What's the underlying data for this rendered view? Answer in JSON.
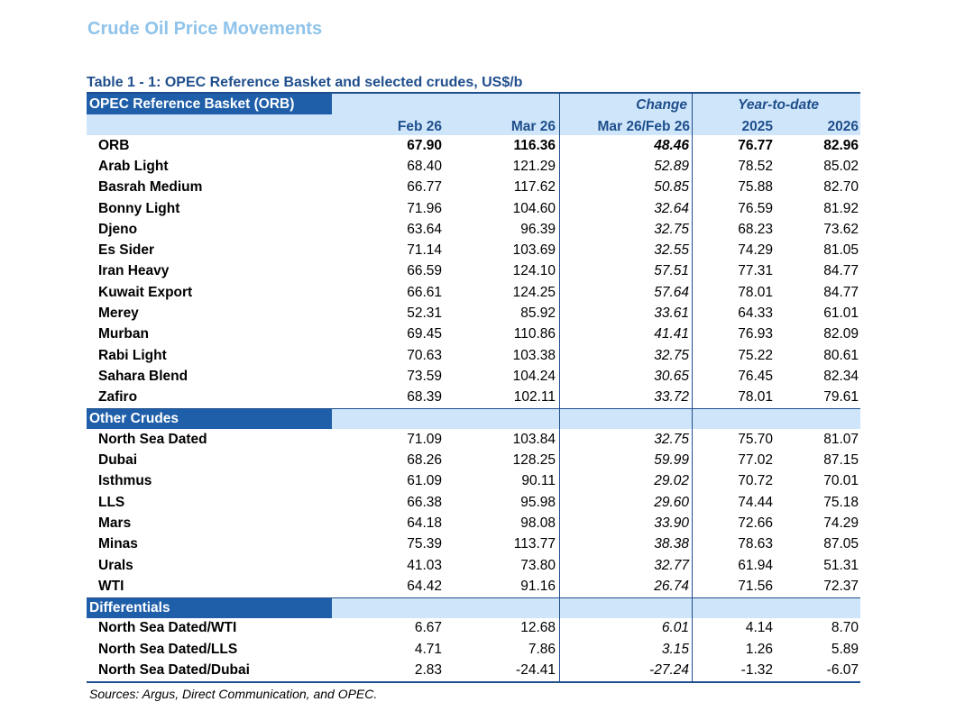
{
  "page_title": "Crude Oil Price Movements",
  "table_caption": "Table 1 - 1: OPEC Reference Basket and selected crudes, US$/b",
  "header": {
    "orb_label": "OPEC Reference Basket (ORB)",
    "col1": "Feb 26",
    "col2": "Mar 26",
    "change_top": "Change",
    "change_bottom": "Mar 26/Feb 26",
    "ytd_top": "Year-to-date",
    "ytd_2025": "2025",
    "ytd_2026": "2026"
  },
  "orb_rows": [
    {
      "name": "ORB",
      "feb": "67.90",
      "mar": "116.36",
      "change": "48.46",
      "y2025": "76.77",
      "y2026": "82.96"
    },
    {
      "name": "Arab Light",
      "feb": "68.40",
      "mar": "121.29",
      "change": "52.89",
      "y2025": "78.52",
      "y2026": "85.02"
    },
    {
      "name": "Basrah Medium",
      "feb": "66.77",
      "mar": "117.62",
      "change": "50.85",
      "y2025": "75.88",
      "y2026": "82.70"
    },
    {
      "name": "Bonny Light",
      "feb": "71.96",
      "mar": "104.60",
      "change": "32.64",
      "y2025": "76.59",
      "y2026": "81.92"
    },
    {
      "name": "Djeno",
      "feb": "63.64",
      "mar": "96.39",
      "change": "32.75",
      "y2025": "68.23",
      "y2026": "73.62"
    },
    {
      "name": "Es Sider",
      "feb": "71.14",
      "mar": "103.69",
      "change": "32.55",
      "y2025": "74.29",
      "y2026": "81.05"
    },
    {
      "name": "Iran Heavy",
      "feb": "66.59",
      "mar": "124.10",
      "change": "57.51",
      "y2025": "77.31",
      "y2026": "84.77"
    },
    {
      "name": "Kuwait Export",
      "feb": "66.61",
      "mar": "124.25",
      "change": "57.64",
      "y2025": "78.01",
      "y2026": "84.77"
    },
    {
      "name": "Merey",
      "feb": "52.31",
      "mar": "85.92",
      "change": "33.61",
      "y2025": "64.33",
      "y2026": "61.01"
    },
    {
      "name": "Murban",
      "feb": "69.45",
      "mar": "110.86",
      "change": "41.41",
      "y2025": "76.93",
      "y2026": "82.09"
    },
    {
      "name": "Rabi Light",
      "feb": "70.63",
      "mar": "103.38",
      "change": "32.75",
      "y2025": "75.22",
      "y2026": "80.61"
    },
    {
      "name": "Sahara Blend",
      "feb": "73.59",
      "mar": "104.24",
      "change": "30.65",
      "y2025": "76.45",
      "y2026": "82.34"
    },
    {
      "name": "Zafiro",
      "feb": "68.39",
      "mar": "102.11",
      "change": "33.72",
      "y2025": "78.01",
      "y2026": "79.61"
    }
  ],
  "other_label": "Other Crudes",
  "other_rows": [
    {
      "name": "North Sea Dated",
      "feb": "71.09",
      "mar": "103.84",
      "change": "32.75",
      "y2025": "75.70",
      "y2026": "81.07"
    },
    {
      "name": "Dubai",
      "feb": "68.26",
      "mar": "128.25",
      "change": "59.99",
      "y2025": "77.02",
      "y2026": "87.15"
    },
    {
      "name": "Isthmus",
      "feb": "61.09",
      "mar": "90.11",
      "change": "29.02",
      "y2025": "70.72",
      "y2026": "70.01"
    },
    {
      "name": "LLS",
      "feb": "66.38",
      "mar": "95.98",
      "change": "29.60",
      "y2025": "74.44",
      "y2026": "75.18"
    },
    {
      "name": "Mars",
      "feb": "64.18",
      "mar": "98.08",
      "change": "33.90",
      "y2025": "72.66",
      "y2026": "74.29"
    },
    {
      "name": "Minas",
      "feb": "75.39",
      "mar": "113.77",
      "change": "38.38",
      "y2025": "78.63",
      "y2026": "87.05"
    },
    {
      "name": "Urals",
      "feb": "41.03",
      "mar": "73.80",
      "change": "32.77",
      "y2025": "61.94",
      "y2026": "51.31"
    },
    {
      "name": "WTI",
      "feb": "64.42",
      "mar": "91.16",
      "change": "26.74",
      "y2025": "71.56",
      "y2026": "72.37"
    }
  ],
  "diff_label": "Differentials",
  "diff_rows": [
    {
      "name": "North Sea Dated/WTI",
      "feb": "6.67",
      "mar": "12.68",
      "change": "6.01",
      "y2025": "4.14",
      "y2026": "8.70"
    },
    {
      "name": "North Sea Dated/LLS",
      "feb": "4.71",
      "mar": "7.86",
      "change": "3.15",
      "y2025": "1.26",
      "y2026": "5.89"
    },
    {
      "name": "North Sea Dated/Dubai",
      "feb": "2.83",
      "mar": "-24.41",
      "change": "-27.24",
      "y2025": "-1.32",
      "y2026": "-6.07"
    }
  ],
  "sources": "Sources:  Argus, Direct Communication, and OPEC."
}
